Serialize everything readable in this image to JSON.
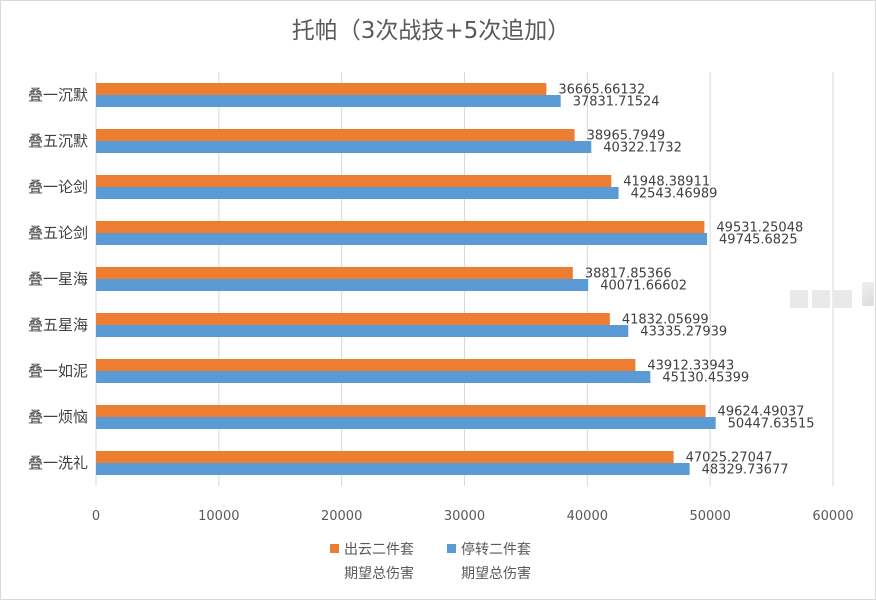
{
  "chart_data": {
    "type": "bar",
    "orientation": "horizontal",
    "title": "托帕（3次战技+5次追加）",
    "categories": [
      "叠一沉默",
      "叠五沉默",
      "叠一论剑",
      "叠五论剑",
      "叠一星海",
      "叠五星海",
      "叠一如泥",
      "叠一烦恼",
      "叠一洗礼"
    ],
    "series": [
      {
        "name": "出云二件套期望总伤害",
        "legend_lines": [
          "出云二件套",
          "期望总伤害"
        ],
        "color": "#ed7d31",
        "values": [
          36665.66132,
          38965.7949,
          41948.38911,
          49531.25048,
          38817.85366,
          41832.05699,
          43912.33943,
          49624.49037,
          47025.27047
        ],
        "labels": [
          "36665.66132",
          "38965.7949",
          "41948.38911",
          "49531.25048",
          "38817.85366",
          "41832.05699",
          "43912.33943",
          "49624.49037",
          "47025.27047"
        ]
      },
      {
        "name": "停转二件套期望总伤害",
        "legend_lines": [
          "停转二件套",
          "期望总伤害"
        ],
        "color": "#5b9bd5",
        "values": [
          37831.71524,
          40322.1732,
          42543.46989,
          49745.6825,
          40071.66602,
          43335.27939,
          45130.45399,
          50447.63515,
          48329.73677
        ],
        "labels": [
          "37831.71524",
          "40322.1732",
          "42543.46989",
          "49745.6825",
          "40071.66602",
          "43335.27939",
          "45130.45399",
          "50447.63515",
          "48329.73677"
        ]
      }
    ],
    "xlim": [
      0,
      60000
    ],
    "xticks": [
      "0",
      "10000",
      "20000",
      "30000",
      "40000",
      "50000",
      "60000"
    ],
    "grid": true,
    "legend_position": "bottom"
  }
}
